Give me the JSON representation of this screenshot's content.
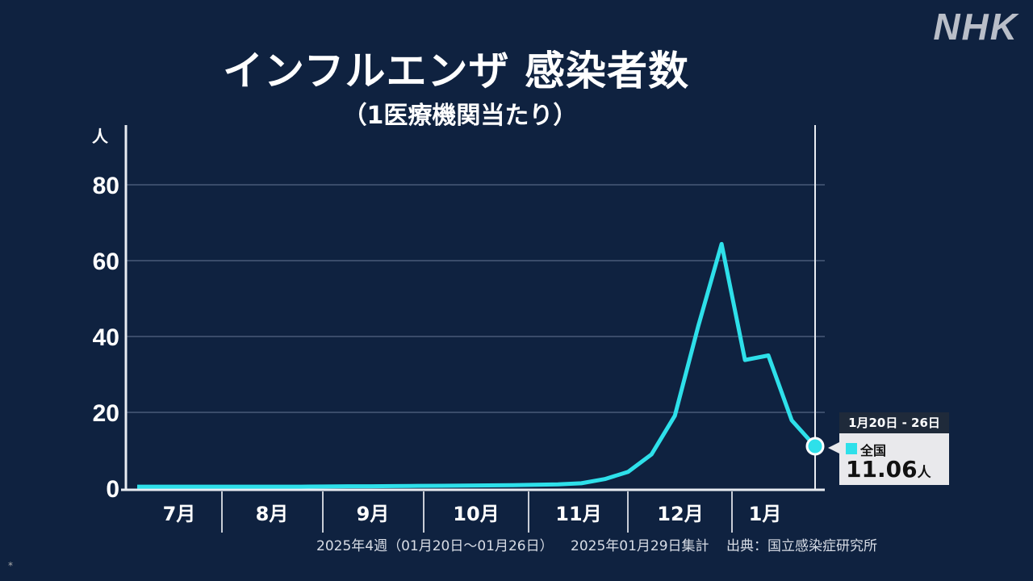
{
  "logo": "NHK",
  "chart_data": {
    "type": "line",
    "title": "インフルエンザ 感染者数",
    "subtitle": "（1医療機関当たり）",
    "ylabel": "人",
    "ylim": [
      0,
      80
    ],
    "yticks": [
      "0",
      "20",
      "40",
      "60",
      "80"
    ],
    "grid": true,
    "month_labels": [
      "7月",
      "8月",
      "9月",
      "10月",
      "11月",
      "12月",
      "1月"
    ],
    "series": [
      {
        "name": "全国",
        "color": "#2ee0ea",
        "values": [
          0.4,
          0.4,
          0.4,
          0.4,
          0.4,
          0.4,
          0.4,
          0.4,
          0.45,
          0.5,
          0.5,
          0.55,
          0.6,
          0.65,
          0.7,
          0.75,
          0.8,
          0.9,
          1.0,
          1.3,
          2.4,
          4.3,
          8.9,
          19.1,
          42.7,
          64.4,
          33.8,
          35.0,
          17.9,
          11.06
        ]
      }
    ],
    "tooltip": {
      "period": "1月20日 - 26日",
      "series": "全国",
      "value": "11.06",
      "unit": "人"
    }
  },
  "footer": {
    "week": "2025年4週（01月20日～01月26日）",
    "tally": "2025年01月29日集計",
    "source": "出典：国立感染症研究所"
  },
  "mark": "*"
}
